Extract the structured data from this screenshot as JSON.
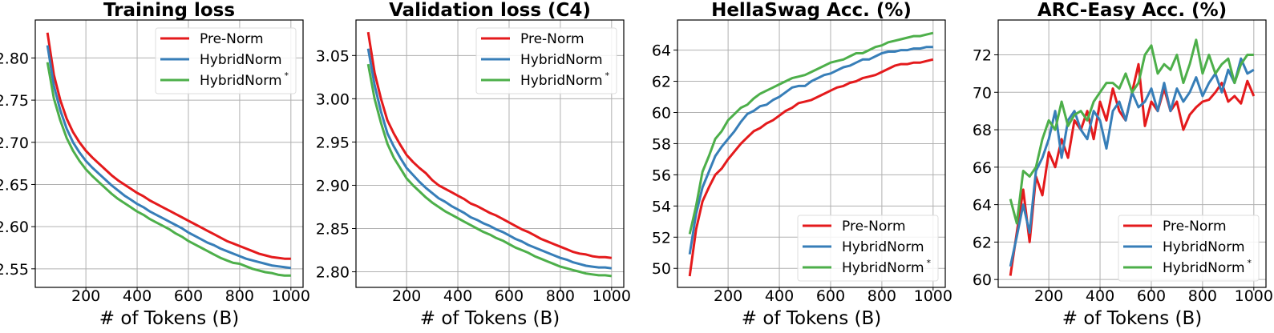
{
  "chart_data": [
    {
      "type": "line",
      "title": "Training loss",
      "xlabel": "# of Tokens (B)",
      "ylabel": "",
      "xlim": [
        2.5,
        1047.5
      ],
      "ylim": [
        2.528,
        2.845
      ],
      "xticks": [
        200,
        400,
        600,
        800,
        1000
      ],
      "yticks": [
        "2.55",
        "2.60",
        "2.65",
        "2.70",
        "2.75",
        "2.80"
      ],
      "grid": true,
      "legend_position": "upper-right",
      "x": [
        50,
        75,
        100,
        125,
        150,
        175,
        200,
        225,
        250,
        275,
        300,
        325,
        350,
        375,
        400,
        425,
        450,
        475,
        500,
        525,
        550,
        575,
        600,
        625,
        650,
        675,
        700,
        725,
        750,
        775,
        800,
        825,
        850,
        875,
        900,
        925,
        950,
        975,
        1000
      ],
      "series": [
        {
          "name": "Pre-Norm",
          "sup": "",
          "color": "#e41a1c",
          "values": [
            2.83,
            2.78,
            2.75,
            2.728,
            2.712,
            2.7,
            2.69,
            2.682,
            2.675,
            2.668,
            2.661,
            2.655,
            2.65,
            2.645,
            2.64,
            2.636,
            2.631,
            2.627,
            2.623,
            2.619,
            2.615,
            2.611,
            2.607,
            2.603,
            2.599,
            2.595,
            2.591,
            2.587,
            2.583,
            2.58,
            2.577,
            2.574,
            2.571,
            2.568,
            2.566,
            2.564,
            2.563,
            2.562,
            2.562
          ]
        },
        {
          "name": "HybridNorm",
          "sup": "",
          "color": "#377eb8",
          "values": [
            2.815,
            2.767,
            2.738,
            2.716,
            2.7,
            2.688,
            2.678,
            2.67,
            2.663,
            2.656,
            2.649,
            2.643,
            2.637,
            2.632,
            2.627,
            2.623,
            2.618,
            2.614,
            2.61,
            2.606,
            2.602,
            2.598,
            2.593,
            2.589,
            2.585,
            2.581,
            2.578,
            2.574,
            2.571,
            2.568,
            2.565,
            2.562,
            2.56,
            2.558,
            2.556,
            2.554,
            2.553,
            2.552,
            2.551
          ]
        },
        {
          "name": "HybridNorm",
          "sup": "*",
          "color": "#4daf4a",
          "values": [
            2.795,
            2.752,
            2.726,
            2.705,
            2.69,
            2.678,
            2.668,
            2.66,
            2.653,
            2.646,
            2.639,
            2.633,
            2.628,
            2.623,
            2.618,
            2.614,
            2.609,
            2.605,
            2.601,
            2.597,
            2.592,
            2.588,
            2.583,
            2.579,
            2.575,
            2.571,
            2.567,
            2.563,
            2.56,
            2.557,
            2.556,
            2.553,
            2.55,
            2.548,
            2.546,
            2.545,
            2.543,
            2.542,
            2.542
          ]
        }
      ]
    },
    {
      "type": "line",
      "title": "Validation loss (C4)",
      "xlabel": "# of Tokens (B)",
      "ylabel": "",
      "xlim": [
        2.5,
        1047.5
      ],
      "ylim": [
        2.782,
        3.091
      ],
      "xticks": [
        200,
        400,
        600,
        800,
        1000
      ],
      "yticks": [
        "2.80",
        "2.85",
        "2.90",
        "2.95",
        "3.00",
        "3.05"
      ],
      "grid": true,
      "legend_position": "upper-right",
      "x": [
        50,
        75,
        100,
        125,
        150,
        175,
        200,
        225,
        250,
        275,
        300,
        325,
        350,
        375,
        400,
        425,
        450,
        475,
        500,
        525,
        550,
        575,
        600,
        625,
        650,
        675,
        700,
        725,
        750,
        775,
        800,
        825,
        850,
        875,
        900,
        925,
        950,
        975,
        1000
      ],
      "series": [
        {
          "name": "Pre-Norm",
          "sup": "",
          "color": "#e41a1c",
          "values": [
            3.077,
            3.03,
            3.0,
            2.975,
            2.96,
            2.947,
            2.935,
            2.927,
            2.92,
            2.914,
            2.906,
            2.9,
            2.896,
            2.892,
            2.888,
            2.884,
            2.879,
            2.876,
            2.872,
            2.868,
            2.865,
            2.861,
            2.857,
            2.853,
            2.849,
            2.846,
            2.842,
            2.838,
            2.835,
            2.832,
            2.829,
            2.826,
            2.823,
            2.821,
            2.82,
            2.818,
            2.817,
            2.817,
            2.816
          ]
        },
        {
          "name": "HybridNorm",
          "sup": "",
          "color": "#377eb8",
          "values": [
            3.058,
            3.016,
            2.985,
            2.96,
            2.945,
            2.932,
            2.92,
            2.912,
            2.904,
            2.897,
            2.891,
            2.885,
            2.881,
            2.876,
            2.872,
            2.868,
            2.863,
            2.86,
            2.856,
            2.853,
            2.849,
            2.846,
            2.842,
            2.838,
            2.835,
            2.831,
            2.828,
            2.825,
            2.822,
            2.819,
            2.816,
            2.814,
            2.811,
            2.809,
            2.807,
            2.806,
            2.805,
            2.805,
            2.804
          ]
        },
        {
          "name": "HybridNorm",
          "sup": "*",
          "color": "#4daf4a",
          "values": [
            3.04,
            3.0,
            2.972,
            2.948,
            2.932,
            2.92,
            2.908,
            2.9,
            2.893,
            2.886,
            2.88,
            2.875,
            2.87,
            2.866,
            2.862,
            2.858,
            2.854,
            2.85,
            2.846,
            2.843,
            2.839,
            2.836,
            2.832,
            2.828,
            2.825,
            2.822,
            2.818,
            2.815,
            2.812,
            2.809,
            2.806,
            2.804,
            2.802,
            2.8,
            2.798,
            2.797,
            2.796,
            2.796,
            2.795
          ]
        }
      ]
    },
    {
      "type": "line",
      "title": "HellaSwag Acc. (%)",
      "xlabel": "# of Tokens (B)",
      "ylabel": "",
      "xlim": [
        2.5,
        1047.5
      ],
      "ylim": [
        48.78,
        65.93
      ],
      "xticks": [
        200,
        400,
        600,
        800,
        1000
      ],
      "yticks": [
        "50",
        "52",
        "54",
        "56",
        "58",
        "60",
        "62",
        "64"
      ],
      "grid": true,
      "legend_position": "lower-right",
      "x": [
        50,
        75,
        100,
        125,
        150,
        175,
        200,
        225,
        250,
        275,
        300,
        325,
        350,
        375,
        400,
        425,
        450,
        475,
        500,
        525,
        550,
        575,
        600,
        625,
        650,
        675,
        700,
        725,
        750,
        775,
        800,
        825,
        850,
        875,
        900,
        925,
        950,
        975,
        1000
      ],
      "series": [
        {
          "name": "Pre-Norm",
          "sup": "",
          "color": "#e41a1c",
          "values": [
            49.5,
            52.5,
            54.3,
            55.2,
            56.0,
            56.4,
            57.0,
            57.5,
            58.0,
            58.4,
            58.8,
            59.0,
            59.3,
            59.5,
            59.8,
            60.1,
            60.3,
            60.6,
            60.7,
            60.8,
            61.0,
            61.2,
            61.4,
            61.6,
            61.7,
            61.9,
            62.0,
            62.2,
            62.3,
            62.4,
            62.6,
            62.8,
            63.0,
            63.1,
            63.1,
            63.2,
            63.2,
            63.3,
            63.4
          ]
        },
        {
          "name": "HybridNorm",
          "sup": "",
          "color": "#377eb8",
          "values": [
            50.9,
            53.5,
            55.2,
            56.2,
            57.2,
            57.8,
            58.3,
            58.8,
            59.4,
            59.9,
            60.1,
            60.4,
            60.5,
            60.8,
            61.0,
            61.3,
            61.6,
            61.7,
            61.7,
            62.0,
            62.2,
            62.4,
            62.5,
            62.7,
            62.9,
            63.0,
            63.2,
            63.4,
            63.4,
            63.6,
            63.8,
            63.9,
            63.9,
            64.0,
            64.0,
            64.1,
            64.1,
            64.2,
            64.2
          ]
        },
        {
          "name": "HybridNorm",
          "sup": "*",
          "color": "#4daf4a",
          "values": [
            52.2,
            54.0,
            56.2,
            57.2,
            58.3,
            58.8,
            59.5,
            59.9,
            60.3,
            60.5,
            60.9,
            61.2,
            61.4,
            61.6,
            61.8,
            62.0,
            62.2,
            62.3,
            62.4,
            62.6,
            62.8,
            63.0,
            63.2,
            63.3,
            63.4,
            63.6,
            63.8,
            63.8,
            64.0,
            64.2,
            64.3,
            64.5,
            64.6,
            64.7,
            64.8,
            64.9,
            64.9,
            65.0,
            65.1
          ]
        }
      ]
    },
    {
      "type": "line",
      "title": "ARC-Easy Acc. (%)",
      "xlabel": "# of Tokens (B)",
      "ylabel": "",
      "xlim": [
        2.5,
        1047.5
      ],
      "ylim": [
        59.58,
        73.86
      ],
      "xticks": [
        200,
        400,
        600,
        800,
        1000
      ],
      "yticks": [
        "60",
        "62",
        "64",
        "66",
        "68",
        "70",
        "72"
      ],
      "grid": true,
      "legend_position": "lower-right",
      "x": [
        50,
        75,
        100,
        125,
        150,
        175,
        200,
        225,
        250,
        275,
        300,
        325,
        350,
        375,
        400,
        425,
        450,
        475,
        500,
        525,
        550,
        575,
        600,
        625,
        650,
        675,
        700,
        725,
        750,
        775,
        800,
        825,
        850,
        875,
        900,
        925,
        950,
        975,
        1000
      ],
      "series": [
        {
          "name": "Pre-Norm",
          "sup": "",
          "color": "#e41a1c",
          "values": [
            60.2,
            62.5,
            64.8,
            62.0,
            65.5,
            64.5,
            66.8,
            66.0,
            67.5,
            66.5,
            68.5,
            68.0,
            69.0,
            67.5,
            69.5,
            68.5,
            70.2,
            69.0,
            68.5,
            70.0,
            71.5,
            68.2,
            69.5,
            69.0,
            70.2,
            69.0,
            69.5,
            68.0,
            68.8,
            69.2,
            69.5,
            69.6,
            70.0,
            70.5,
            69.5,
            69.8,
            69.4,
            70.6,
            69.8
          ]
        },
        {
          "name": "HybridNorm",
          "sup": "",
          "color": "#377eb8",
          "values": [
            60.7,
            62.3,
            64.0,
            62.5,
            65.8,
            66.5,
            67.5,
            69.0,
            66.5,
            68.5,
            69.0,
            68.0,
            67.5,
            69.0,
            68.5,
            67.0,
            69.0,
            69.5,
            68.5,
            70.0,
            69.2,
            69.5,
            70.2,
            69.0,
            70.5,
            69.0,
            70.2,
            69.5,
            70.0,
            70.8,
            69.8,
            70.5,
            71.0,
            70.0,
            71.2,
            70.5,
            71.8,
            71.0,
            71.2
          ]
        },
        {
          "name": "HybridNorm",
          "sup": "*",
          "color": "#4daf4a",
          "values": [
            64.3,
            63.0,
            65.8,
            65.5,
            66.0,
            67.5,
            68.5,
            68.0,
            69.5,
            68.2,
            68.8,
            69.0,
            68.5,
            69.5,
            70.0,
            70.5,
            70.5,
            70.2,
            71.0,
            70.0,
            70.5,
            72.0,
            72.5,
            71.0,
            71.5,
            71.2,
            72.0,
            70.5,
            71.5,
            72.8,
            71.0,
            72.0,
            71.0,
            71.5,
            71.8,
            70.5,
            71.5,
            72.0,
            72.0
          ]
        }
      ]
    }
  ]
}
